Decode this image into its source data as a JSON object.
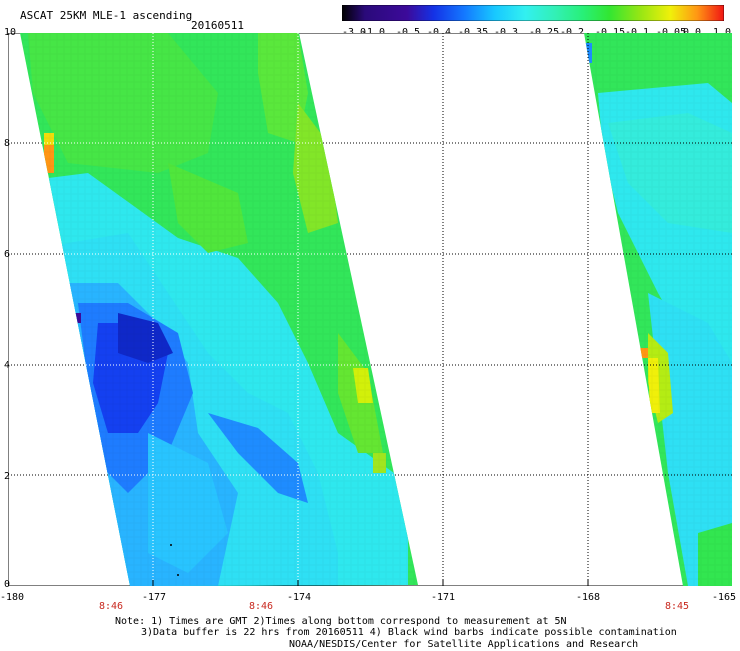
{
  "header": {
    "title": "ASCAT 25KM MLE-1 ascending",
    "date": "20160511"
  },
  "colorbar": {
    "labels": [
      "-3.0",
      "-1.0",
      "-0.5",
      "-0.4",
      "-0.35",
      "-0.3",
      "-0.25",
      "-0.2",
      "-0.15",
      "-0.1",
      "-0.05",
      "0.0",
      "1.0"
    ],
    "colors": [
      "#000000",
      "#3c0a9a",
      "#1432e6",
      "#1478ff",
      "#18c8ff",
      "#32f0f0",
      "#32f0c8",
      "#28f078",
      "#32e632",
      "#96e614",
      "#f0f00a",
      "#ff9614",
      "#f01414"
    ]
  },
  "axes": {
    "lat_ticks": [
      "10",
      "8",
      "6",
      "4",
      "2",
      "0"
    ],
    "lon_ticks": [
      "-180",
      "-177",
      "-174",
      "-171",
      "-168",
      "-165"
    ],
    "lat_range": [
      0,
      10
    ],
    "lon_range": [
      -180,
      -165
    ]
  },
  "pass_times": [
    "8:46",
    "8:46",
    "8:45"
  ],
  "notes": [
    "Note: 1) Times are GMT 2)Times along bottom correspond to measurement at 5N",
    "3)Data buffer is 22 hrs from 20160511 4) Black wind barbs indicate possible contamination",
    "NOAA/NESDIS/Center for Satellite Applications and Research"
  ],
  "legend_colors": {
    "blue_deep": "#1440f0",
    "blue_mid": "#1e8cff",
    "cyan": "#2ee8f4",
    "cyan_green": "#32f0b4",
    "green": "#32e650",
    "yellow": "#f0f00a",
    "orange": "#ff9614"
  }
}
